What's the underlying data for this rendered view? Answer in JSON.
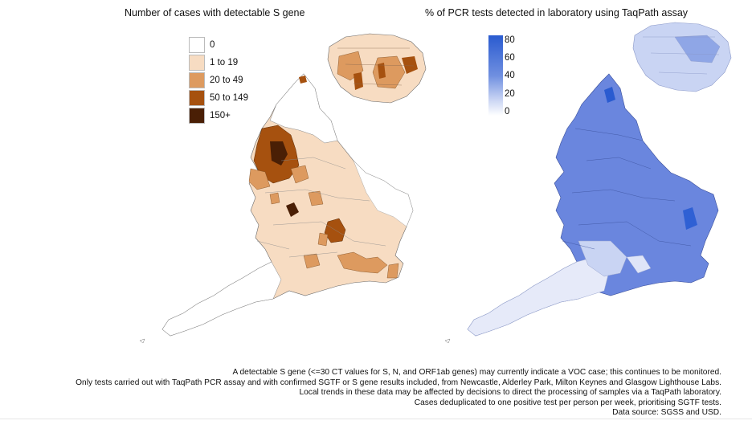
{
  "left_map": {
    "title": "Number of cases with detectable S gene",
    "legend": [
      {
        "label": "0",
        "color": "#ffffff"
      },
      {
        "label": "1 to 19",
        "color": "#f7dcc2"
      },
      {
        "label": "20 to 49",
        "color": "#dd9a5f"
      },
      {
        "label": "50 to 149",
        "color": "#a6510f"
      },
      {
        "label": "150+",
        "color": "#4a1f05"
      }
    ]
  },
  "right_map": {
    "title": "% of PCR tests detected in laboratory using TaqPath assay",
    "scale_ticks": [
      "80",
      "60",
      "40",
      "20",
      "0"
    ],
    "scale_colors": {
      "high": "#2a5bd0",
      "mid": "#6f8fe0",
      "low": "#ffffff"
    }
  },
  "notes": [
    "A detectable S gene (<=30 CT values for S, N, and ORF1ab genes) may currently indicate a VOC case; this continues to be monitored.",
    "Only tests carried out with TaqPath PCR assay and with confirmed SGTF or S gene results included, from Newcastle, Alderley Park, Milton Keynes and Glasgow Lighthouse Labs.",
    "Local trends in these data may be affected by decisions to direct the processing of samples via a TaqPath laboratory.",
    "Cases deduplicated to one positive test per person per week, prioritising SGTF tests.",
    "Data source: SGSS and USD."
  ]
}
